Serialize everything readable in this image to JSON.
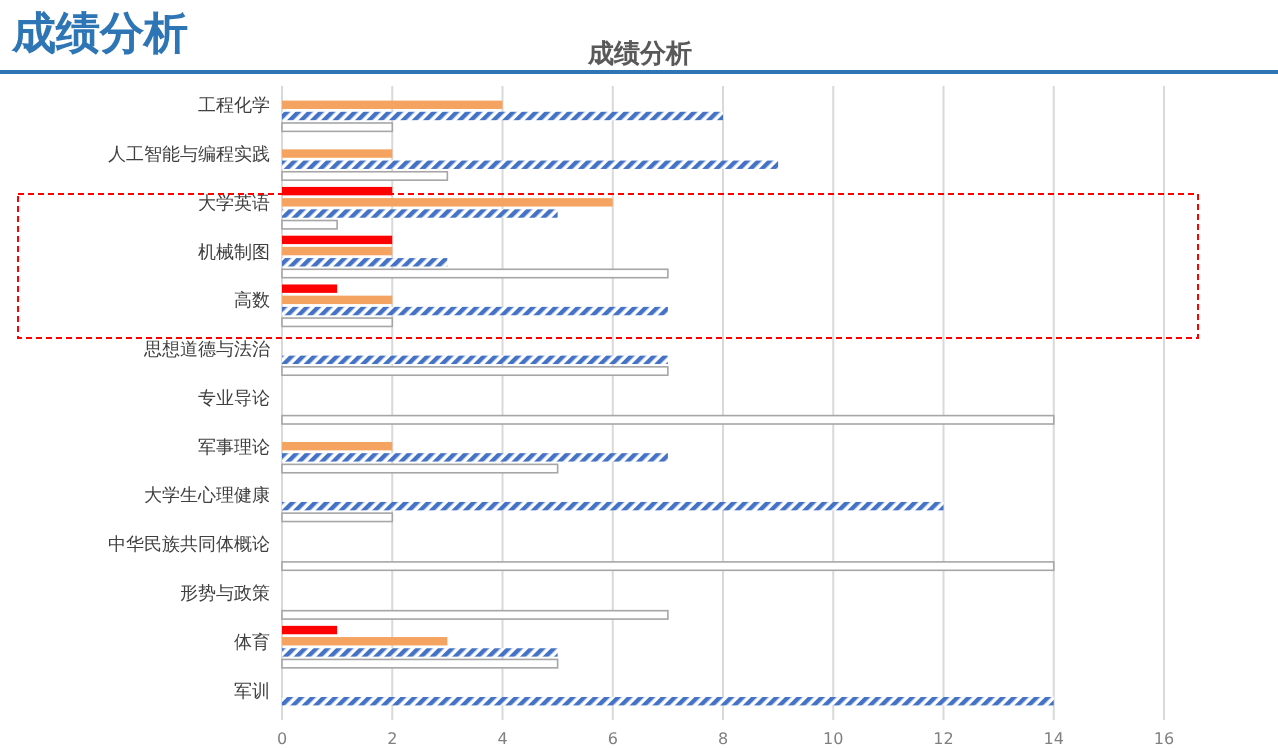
{
  "chart_data": {
    "type": "bar",
    "orientation": "horizontal",
    "title": "成绩分析",
    "subtitle": "成绩分析",
    "categories": [
      "工程化学",
      "人工智能与编程实践",
      "大学英语",
      "机械制图",
      "高数",
      "思想道德与法治",
      "专业导论",
      "军事理论",
      "大学生心理健康",
      "中华民族共同体概论",
      "形势与政策",
      "体育",
      "军训"
    ],
    "series": [
      {
        "color": "#ff0000",
        "values": [
          0,
          0,
          2,
          2,
          1,
          0,
          0,
          0,
          0,
          0,
          0,
          1,
          0
        ]
      },
      {
        "color": "#f4a460",
        "values": [
          4,
          2,
          6,
          2,
          2,
          0,
          0,
          2,
          0,
          0,
          0,
          3,
          0
        ]
      },
      {
        "color": "#4472c4",
        "values": [
          8,
          9,
          5,
          3,
          7,
          7,
          0,
          7,
          12,
          0,
          0,
          5,
          14
        ]
      },
      {
        "color": "#ffffff",
        "values": [
          2,
          3,
          1,
          7,
          2,
          7,
          14,
          5,
          2,
          14,
          7,
          5,
          0
        ]
      }
    ],
    "xlim": [
      0,
      16
    ],
    "xticks": [
      0,
      2,
      4,
      6,
      8,
      10,
      12,
      14,
      16
    ],
    "grid": "x"
  }
}
